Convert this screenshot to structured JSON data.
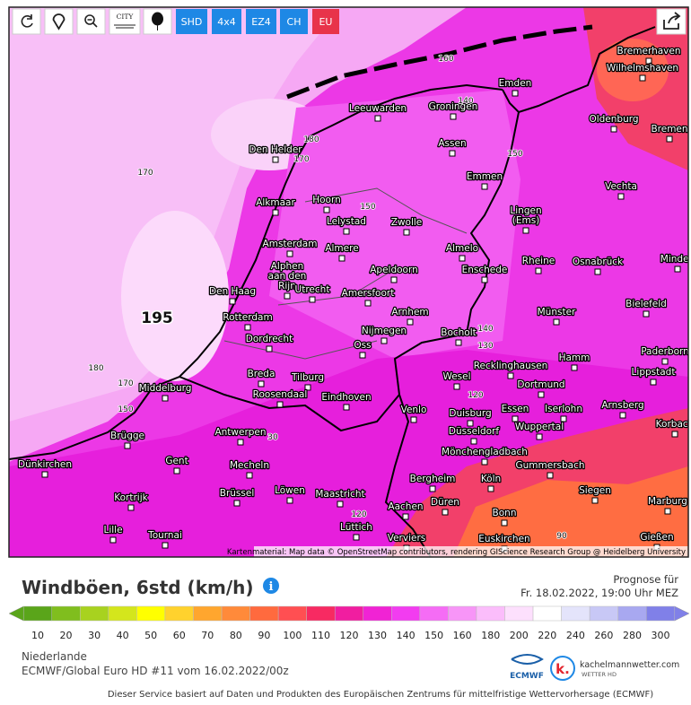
{
  "toolbar": {
    "city_icon": "CITY",
    "buttons": [
      "SHD",
      "4x4",
      "EZ4",
      "CH",
      "EU"
    ]
  },
  "map": {
    "cities": [
      {
        "lines": [
          "Bremerhaven"
        ]
      },
      {
        "lines": [
          "Wilhelmshaven"
        ]
      },
      {
        "lines": [
          "Emden"
        ]
      },
      {
        "lines": [
          "Leeuwarden"
        ]
      },
      {
        "lines": [
          "Groningen"
        ]
      },
      {
        "lines": [
          "Oldenburg"
        ]
      },
      {
        "lines": [
          "Bremen"
        ]
      },
      {
        "lines": [
          "Den Helder"
        ]
      },
      {
        "lines": [
          "Assen"
        ]
      },
      {
        "lines": [
          "Emmen"
        ]
      },
      {
        "lines": [
          "Vechta"
        ]
      },
      {
        "lines": [
          "Alkmaar"
        ]
      },
      {
        "lines": [
          "Hoorn"
        ]
      },
      {
        "lines": [
          "Lelystad"
        ]
      },
      {
        "lines": [
          "Zwolle"
        ]
      },
      {
        "lines": [
          "Lingen",
          "(Ems)"
        ]
      },
      {
        "lines": [
          "Amsterdam"
        ]
      },
      {
        "lines": [
          "Almere"
        ]
      },
      {
        "lines": [
          "Almelo"
        ]
      },
      {
        "lines": [
          "Enschede"
        ]
      },
      {
        "lines": [
          "Rheine"
        ]
      },
      {
        "lines": [
          "Osnabrück"
        ]
      },
      {
        "lines": [
          "Minden"
        ]
      },
      {
        "lines": [
          "Alphen",
          "aan den",
          "Rijn"
        ]
      },
      {
        "lines": [
          "Utrecht"
        ]
      },
      {
        "lines": [
          "Apeldoorn"
        ]
      },
      {
        "lines": [
          "Amersfoort"
        ]
      },
      {
        "lines": [
          "Den Haag"
        ]
      },
      {
        "lines": [
          "Bielefeld"
        ]
      },
      {
        "lines": [
          "Arnhem"
        ]
      },
      {
        "lines": [
          "Münster"
        ]
      },
      {
        "lines": [
          "Rotterdam"
        ]
      },
      {
        "lines": [
          "Nijmegen"
        ]
      },
      {
        "lines": [
          "Bocholt"
        ]
      },
      {
        "lines": [
          "Dordrecht"
        ]
      },
      {
        "lines": [
          "Oss"
        ]
      },
      {
        "lines": [
          "Paderborn"
        ]
      },
      {
        "lines": [
          "Hamm"
        ]
      },
      {
        "lines": [
          "Recklinghausen"
        ]
      },
      {
        "lines": [
          "Lippstadt"
        ]
      },
      {
        "lines": [
          "Breda"
        ]
      },
      {
        "lines": [
          "Tilburg"
        ]
      },
      {
        "lines": [
          "Wesel"
        ]
      },
      {
        "lines": [
          "Dortmund"
        ]
      },
      {
        "lines": [
          "Middelburg"
        ]
      },
      {
        "lines": [
          "Roosendaal"
        ]
      },
      {
        "lines": [
          "Eindhoven"
        ]
      },
      {
        "lines": [
          "Arnsberg"
        ]
      },
      {
        "lines": [
          "Essen"
        ]
      },
      {
        "lines": [
          "Iserlohn"
        ]
      },
      {
        "lines": [
          "Duisburg"
        ]
      },
      {
        "lines": [
          "Venlo"
        ]
      },
      {
        "lines": [
          "Korbach"
        ]
      },
      {
        "lines": [
          "Wuppertal"
        ]
      },
      {
        "lines": [
          "Düsseldorf"
        ]
      },
      {
        "lines": [
          "Brügge"
        ]
      },
      {
        "lines": [
          "Antwerpen"
        ]
      },
      {
        "lines": [
          "Mönchengladbach"
        ]
      },
      {
        "lines": [
          "Gent"
        ]
      },
      {
        "lines": [
          "Dünkirchen"
        ]
      },
      {
        "lines": [
          "Mecheln"
        ]
      },
      {
        "lines": [
          "Gummersbach"
        ]
      },
      {
        "lines": [
          "Bergheim"
        ]
      },
      {
        "lines": [
          "Köln"
        ]
      },
      {
        "lines": [
          "Brüssel"
        ]
      },
      {
        "lines": [
          "Löwen"
        ]
      },
      {
        "lines": [
          "Maastricht"
        ]
      },
      {
        "lines": [
          "Siegen"
        ]
      },
      {
        "lines": [
          "Kortrijk"
        ]
      },
      {
        "lines": [
          "Düren"
        ]
      },
      {
        "lines": [
          "Aachen"
        ]
      },
      {
        "lines": [
          "Marburg"
        ]
      },
      {
        "lines": [
          "Bonn"
        ]
      },
      {
        "lines": [
          "Lille"
        ]
      },
      {
        "lines": [
          "Tournai"
        ]
      },
      {
        "lines": [
          "Lüttich"
        ]
      },
      {
        "lines": [
          "Verviers"
        ]
      },
      {
        "lines": [
          "Euskirchen"
        ]
      },
      {
        "lines": [
          "Gießen"
        ]
      }
    ],
    "contour_labels": [
      "180",
      "170",
      "170",
      "150",
      "180",
      "170",
      "150",
      "195",
      "140",
      "160",
      "150",
      "140",
      "130",
      "120",
      "30",
      "120",
      "90"
    ],
    "attribution": "Kartenmaterial: Map data © OpenStreetMap contributors, rendering GIScience Research Group @ Heidelberg University"
  },
  "legend": {
    "title": "Windböen, 6std (km/h)",
    "forecast_label": "Prognose für",
    "forecast_time": "Fr. 18.02.2022, 19:00 Uhr MEZ",
    "scale": [
      {
        "value": 10,
        "color": "#5aa51a"
      },
      {
        "value": 20,
        "color": "#80be1e"
      },
      {
        "value": 30,
        "color": "#a8d21f"
      },
      {
        "value": 40,
        "color": "#d4e61c"
      },
      {
        "value": 50,
        "color": "#ffff00"
      },
      {
        "value": 60,
        "color": "#ffd22d"
      },
      {
        "value": 70,
        "color": "#ffa62e"
      },
      {
        "value": 80,
        "color": "#ff8a3a"
      },
      {
        "value": 90,
        "color": "#ff6a3e"
      },
      {
        "value": 100,
        "color": "#ff4f52"
      },
      {
        "value": 110,
        "color": "#f72a62"
      },
      {
        "value": 120,
        "color": "#f01ea0"
      },
      {
        "value": 130,
        "color": "#f023d4"
      },
      {
        "value": 140,
        "color": "#f23cf0"
      },
      {
        "value": 150,
        "color": "#f56cf5"
      },
      {
        "value": 160,
        "color": "#f795f7"
      },
      {
        "value": 180,
        "color": "#fbbdfb"
      },
      {
        "value": 200,
        "color": "#fde0fd"
      },
      {
        "value": 220,
        "color": "#ffffff"
      },
      {
        "value": 240,
        "color": "#e4e4fb"
      },
      {
        "value": 260,
        "color": "#c8c8f6"
      },
      {
        "value": 280,
        "color": "#a8a8f0"
      },
      {
        "value": 300,
        "color": "#8080e8"
      }
    ]
  },
  "info": {
    "region": "Niederlande",
    "model": "ECMWF/Global Euro HD #11 vom 16.02.2022/00z"
  },
  "logos": {
    "ecmwf": "ECMWF",
    "k": "k.",
    "site": "kachelmannwetter.com",
    "tagline": "WETTER HD"
  },
  "footer": "Dieser Service basiert auf Daten und Produkten des Europäischen Zentrums für mittelfristige Wettervorhersage (ECMWF)"
}
